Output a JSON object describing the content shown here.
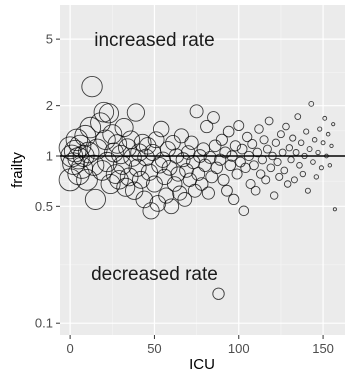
{
  "chart_data": {
    "type": "scatter",
    "xlabel": "ICU",
    "ylabel": "frailty",
    "x_scale": "linear",
    "y_scale": "log",
    "xlim": [
      -6,
      163
    ],
    "ylim": [
      0.085,
      8.0
    ],
    "x_ticks": [
      0,
      50,
      100,
      150
    ],
    "x_tick_labels": [
      "0",
      "50",
      "100",
      "150"
    ],
    "y_ticks": [
      0.1,
      0.5,
      1,
      2,
      5
    ],
    "y_tick_labels": [
      "0.1",
      "0.5",
      "1",
      "2",
      "5"
    ],
    "reference_line_y": 1,
    "grid": true,
    "legend": "none",
    "colors": {
      "panel": "#ebebeb",
      "grid": "#ffffff",
      "points": "#000000",
      "reference_line": "#000000"
    },
    "annotations": [
      {
        "text": "increased rate",
        "x": 50,
        "y": 5
      },
      {
        "text": "decreased rate",
        "x": 50,
        "y": 0.2
      }
    ],
    "point_size_note": "marker size decreases with ICU index",
    "points": [
      {
        "x": 0,
        "y": 1.12
      },
      {
        "x": 0,
        "y": 0.72
      },
      {
        "x": 1,
        "y": 1.0
      },
      {
        "x": 2,
        "y": 0.9
      },
      {
        "x": 3,
        "y": 1.07
      },
      {
        "x": 4,
        "y": 1.25
      },
      {
        "x": 5,
        "y": 0.78
      },
      {
        "x": 5,
        "y": 0.97
      },
      {
        "x": 6,
        "y": 1.15
      },
      {
        "x": 7,
        "y": 0.85
      },
      {
        "x": 8,
        "y": 1.0
      },
      {
        "x": 9,
        "y": 1.32
      },
      {
        "x": 10,
        "y": 0.72
      },
      {
        "x": 11,
        "y": 1.05
      },
      {
        "x": 12,
        "y": 1.48
      },
      {
        "x": 13,
        "y": 2.6
      },
      {
        "x": 14,
        "y": 0.88
      },
      {
        "x": 15,
        "y": 0.55
      },
      {
        "x": 16,
        "y": 1.1
      },
      {
        "x": 18,
        "y": 1.58
      },
      {
        "x": 19,
        "y": 0.82
      },
      {
        "x": 20,
        "y": 1.83
      },
      {
        "x": 21,
        "y": 1.25
      },
      {
        "x": 22,
        "y": 0.92
      },
      {
        "x": 23,
        "y": 1.8
      },
      {
        "x": 24,
        "y": 0.68
      },
      {
        "x": 25,
        "y": 1.35
      },
      {
        "x": 26,
        "y": 1.05
      },
      {
        "x": 27,
        "y": 0.78
      },
      {
        "x": 28,
        "y": 1.18
      },
      {
        "x": 29,
        "y": 0.72
      },
      {
        "x": 30,
        "y": 1.02
      },
      {
        "x": 31,
        "y": 0.88
      },
      {
        "x": 32,
        "y": 1.48
      },
      {
        "x": 33,
        "y": 0.65
      },
      {
        "x": 34,
        "y": 1.12
      },
      {
        "x": 35,
        "y": 0.75
      },
      {
        "x": 36,
        "y": 1.25
      },
      {
        "x": 37,
        "y": 0.98
      },
      {
        "x": 38,
        "y": 0.62
      },
      {
        "x": 39,
        "y": 1.82
      },
      {
        "x": 40,
        "y": 0.85
      },
      {
        "x": 41,
        "y": 1.05
      },
      {
        "x": 42,
        "y": 0.72
      },
      {
        "x": 43,
        "y": 1.2
      },
      {
        "x": 44,
        "y": 0.55
      },
      {
        "x": 45,
        "y": 0.98
      },
      {
        "x": 46,
        "y": 1.15
      },
      {
        "x": 47,
        "y": 0.8
      },
      {
        "x": 48,
        "y": 0.47
      },
      {
        "x": 49,
        "y": 1.05
      },
      {
        "x": 50,
        "y": 0.68
      },
      {
        "x": 51,
        "y": 1.25
      },
      {
        "x": 52,
        "y": 0.52
      },
      {
        "x": 53,
        "y": 0.88
      },
      {
        "x": 54,
        "y": 1.45
      },
      {
        "x": 55,
        "y": 0.95
      },
      {
        "x": 56,
        "y": 0.75
      },
      {
        "x": 57,
        "y": 0.58
      },
      {
        "x": 58,
        "y": 1.1
      },
      {
        "x": 59,
        "y": 0.85
      },
      {
        "x": 60,
        "y": 0.5
      },
      {
        "x": 61,
        "y": 1.2
      },
      {
        "x": 62,
        "y": 0.68
      },
      {
        "x": 63,
        "y": 1.0
      },
      {
        "x": 64,
        "y": 0.78
      },
      {
        "x": 65,
        "y": 0.6
      },
      {
        "x": 66,
        "y": 1.32
      },
      {
        "x": 67,
        "y": 0.95
      },
      {
        "x": 68,
        "y": 0.55
      },
      {
        "x": 69,
        "y": 0.82
      },
      {
        "x": 70,
        "y": 1.05
      },
      {
        "x": 71,
        "y": 0.72
      },
      {
        "x": 72,
        "y": 1.2
      },
      {
        "x": 73,
        "y": 0.92
      },
      {
        "x": 74,
        "y": 0.62
      },
      {
        "x": 75,
        "y": 1.85
      },
      {
        "x": 76,
        "y": 0.78
      },
      {
        "x": 77,
        "y": 1.0
      },
      {
        "x": 78,
        "y": 0.68
      },
      {
        "x": 79,
        "y": 1.1
      },
      {
        "x": 80,
        "y": 0.88
      },
      {
        "x": 81,
        "y": 1.5
      },
      {
        "x": 82,
        "y": 0.6
      },
      {
        "x": 83,
        "y": 0.98
      },
      {
        "x": 84,
        "y": 0.75
      },
      {
        "x": 85,
        "y": 1.7
      },
      {
        "x": 86,
        "y": 1.15
      },
      {
        "x": 87,
        "y": 0.85
      },
      {
        "x": 88,
        "y": 0.15
      },
      {
        "x": 89,
        "y": 0.95
      },
      {
        "x": 90,
        "y": 1.25
      },
      {
        "x": 91,
        "y": 0.72
      },
      {
        "x": 92,
        "y": 1.05
      },
      {
        "x": 93,
        "y": 0.62
      },
      {
        "x": 94,
        "y": 1.4
      },
      {
        "x": 95,
        "y": 0.88
      },
      {
        "x": 96,
        "y": 1.0
      },
      {
        "x": 97,
        "y": 0.55
      },
      {
        "x": 98,
        "y": 1.15
      },
      {
        "x": 99,
        "y": 0.78
      },
      {
        "x": 100,
        "y": 1.52
      },
      {
        "x": 101,
        "y": 0.92
      },
      {
        "x": 102,
        "y": 1.1
      },
      {
        "x": 103,
        "y": 0.47
      },
      {
        "x": 104,
        "y": 0.85
      },
      {
        "x": 105,
        "y": 1.3
      },
      {
        "x": 106,
        "y": 1.0
      },
      {
        "x": 107,
        "y": 0.68
      },
      {
        "x": 108,
        "y": 1.18
      },
      {
        "x": 109,
        "y": 0.88
      },
      {
        "x": 110,
        "y": 0.62
      },
      {
        "x": 111,
        "y": 1.05
      },
      {
        "x": 112,
        "y": 1.45
      },
      {
        "x": 113,
        "y": 0.78
      },
      {
        "x": 114,
        "y": 0.95
      },
      {
        "x": 115,
        "y": 1.25
      },
      {
        "x": 116,
        "y": 0.72
      },
      {
        "x": 117,
        "y": 1.1
      },
      {
        "x": 118,
        "y": 1.62
      },
      {
        "x": 119,
        "y": 0.85
      },
      {
        "x": 120,
        "y": 1.0
      },
      {
        "x": 121,
        "y": 0.58
      },
      {
        "x": 122,
        "y": 1.2
      },
      {
        "x": 123,
        "y": 0.92
      },
      {
        "x": 124,
        "y": 0.75
      },
      {
        "x": 125,
        "y": 1.35
      },
      {
        "x": 126,
        "y": 1.05
      },
      {
        "x": 127,
        "y": 0.82
      },
      {
        "x": 128,
        "y": 1.5
      },
      {
        "x": 129,
        "y": 0.68
      },
      {
        "x": 130,
        "y": 1.12
      },
      {
        "x": 131,
        "y": 0.95
      },
      {
        "x": 132,
        "y": 1.28
      },
      {
        "x": 133,
        "y": 0.72
      },
      {
        "x": 134,
        "y": 1.05
      },
      {
        "x": 135,
        "y": 1.72
      },
      {
        "x": 136,
        "y": 0.88
      },
      {
        "x": 137,
        "y": 1.2
      },
      {
        "x": 138,
        "y": 0.78
      },
      {
        "x": 139,
        "y": 1.0
      },
      {
        "x": 140,
        "y": 1.4
      },
      {
        "x": 141,
        "y": 0.62
      },
      {
        "x": 142,
        "y": 1.1
      },
      {
        "x": 143,
        "y": 2.05
      },
      {
        "x": 144,
        "y": 0.92
      },
      {
        "x": 145,
        "y": 1.25
      },
      {
        "x": 146,
        "y": 0.75
      },
      {
        "x": 147,
        "y": 1.05
      },
      {
        "x": 148,
        "y": 1.45
      },
      {
        "x": 149,
        "y": 0.85
      },
      {
        "x": 150,
        "y": 1.2
      },
      {
        "x": 151,
        "y": 1.68
      },
      {
        "x": 152,
        "y": 1.0
      },
      {
        "x": 153,
        "y": 1.35
      },
      {
        "x": 154,
        "y": 0.88
      },
      {
        "x": 155,
        "y": 1.15
      },
      {
        "x": 156,
        "y": 1.55
      },
      {
        "x": 157,
        "y": 0.48
      }
    ]
  }
}
